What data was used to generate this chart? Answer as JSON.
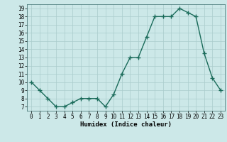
{
  "x": [
    0,
    1,
    2,
    3,
    4,
    5,
    6,
    7,
    8,
    9,
    10,
    11,
    12,
    13,
    14,
    15,
    16,
    17,
    18,
    19,
    20,
    21,
    22,
    23
  ],
  "y": [
    10,
    9,
    8,
    7,
    7,
    7.5,
    8,
    8,
    8,
    7,
    8.5,
    11,
    13,
    13,
    15.5,
    18,
    18,
    18,
    19,
    18.5,
    18,
    13.5,
    10.5,
    9
  ],
  "line_color": "#1a6b5a",
  "marker": "+",
  "marker_size": 4,
  "marker_linewidth": 1.0,
  "xlabel": "Humidex (Indice chaleur)",
  "xlim": [
    -0.5,
    23.5
  ],
  "ylim": [
    6.5,
    19.5
  ],
  "yticks": [
    7,
    8,
    9,
    10,
    11,
    12,
    13,
    14,
    15,
    16,
    17,
    18,
    19
  ],
  "xticks": [
    0,
    1,
    2,
    3,
    4,
    5,
    6,
    7,
    8,
    9,
    10,
    11,
    12,
    13,
    14,
    15,
    16,
    17,
    18,
    19,
    20,
    21,
    22,
    23
  ],
  "xtick_labels": [
    "0",
    "1",
    "2",
    "3",
    "4",
    "5",
    "6",
    "7",
    "8",
    "9",
    "10",
    "11",
    "12",
    "13",
    "14",
    "15",
    "16",
    "17",
    "18",
    "19",
    "20",
    "21",
    "22",
    "23"
  ],
  "background_color": "#cce8e8",
  "grid_color": "#aacccc",
  "linewidth": 1.0,
  "tick_fontsize": 5.5,
  "xlabel_fontsize": 6.5
}
